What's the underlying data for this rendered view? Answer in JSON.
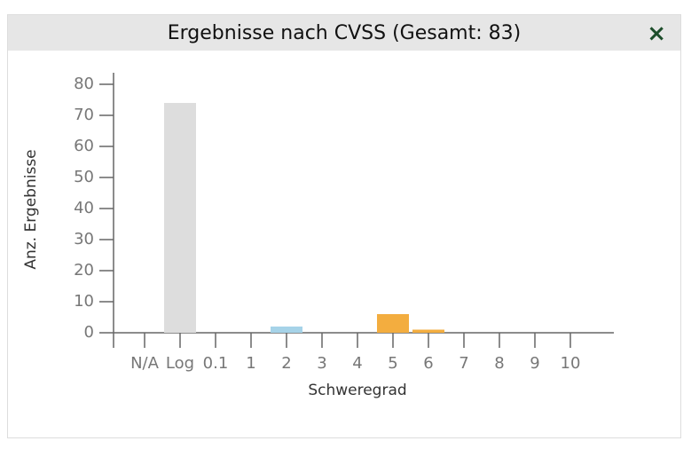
{
  "header": {
    "title": "Ergebnisse nach CVSS (Gesamt: 83)",
    "close_label": "×"
  },
  "chart_data": {
    "type": "bar",
    "x_label": "Schweregrad",
    "y_label": "Anz. Ergebnisse",
    "categories": [
      "N/A",
      "Log",
      "0.1",
      "1",
      "2",
      "3",
      "4",
      "5",
      "6",
      "7",
      "8",
      "9",
      "10"
    ],
    "values": [
      0,
      74,
      0,
      0,
      2,
      0,
      0,
      6,
      1,
      0,
      0,
      0,
      0
    ],
    "colors": [
      "#dddddd",
      "#dddddd",
      "#a6d3e8",
      "#a6d3e8",
      "#a6d3e8",
      "#a6d3e8",
      "#f3ad3f",
      "#f3ad3f",
      "#f3ad3f",
      "#f3ad3f",
      "#e06a5f",
      "#e06a5f",
      "#e06a5f"
    ],
    "ylim": [
      0,
      80
    ],
    "yticks": [
      0,
      10,
      20,
      30,
      40,
      50,
      60,
      70,
      80
    ],
    "grid": false
  }
}
